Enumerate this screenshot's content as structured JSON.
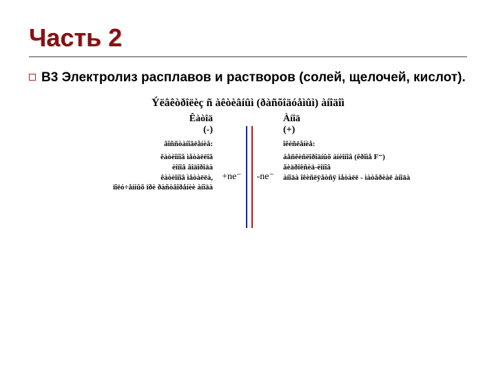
{
  "colors": {
    "title": "#8a0f0f",
    "bullet_border": "#b02020",
    "rule": "#404040",
    "blue_line": "#1020c0",
    "red_line": "#c01010",
    "text": "#000000",
    "background": "#ffffff"
  },
  "title": "Часть 2",
  "subtitle_label": "В3",
  "subtitle_rest": " Электролиз расплавов и растворов (солей, щелочей, кислот).",
  "diagram": {
    "heading": "Ýёâêòðîёèç ñ àêòèâíûì (ðàñõîäóåìûì) àíîäîì",
    "mid_left": "+ne⁻",
    "mid_right": "-ne⁻",
    "cathode": {
      "name": "Êàòîä",
      "sign": "(-)",
      "process_label": "âîññòàíîâëåíèå:",
      "lines": [
        "êàòèîíîâ ìåòàëëîâ",
        "èîíîâ âîäîðîäà",
        "êàòèîíîâ ìåòàëëà,",
        "ïîëó÷åííûõ ïðè ðàñòâîðåíèè àíîäà"
      ]
    },
    "anode": {
      "name": "Àíîä",
      "sign": "(+)",
      "process_label": "îêèñëåíèå:",
      "lines": [
        "áåñêèñëîðîäíûõ àíèîíîâ (êðîìå F⁻)",
        "ãèäðîêñèä-èîíîâ",
        "àíîäà îêèñëÿåòñÿ ìåòàëë - ìàòåðèàë àíîäà"
      ]
    }
  }
}
